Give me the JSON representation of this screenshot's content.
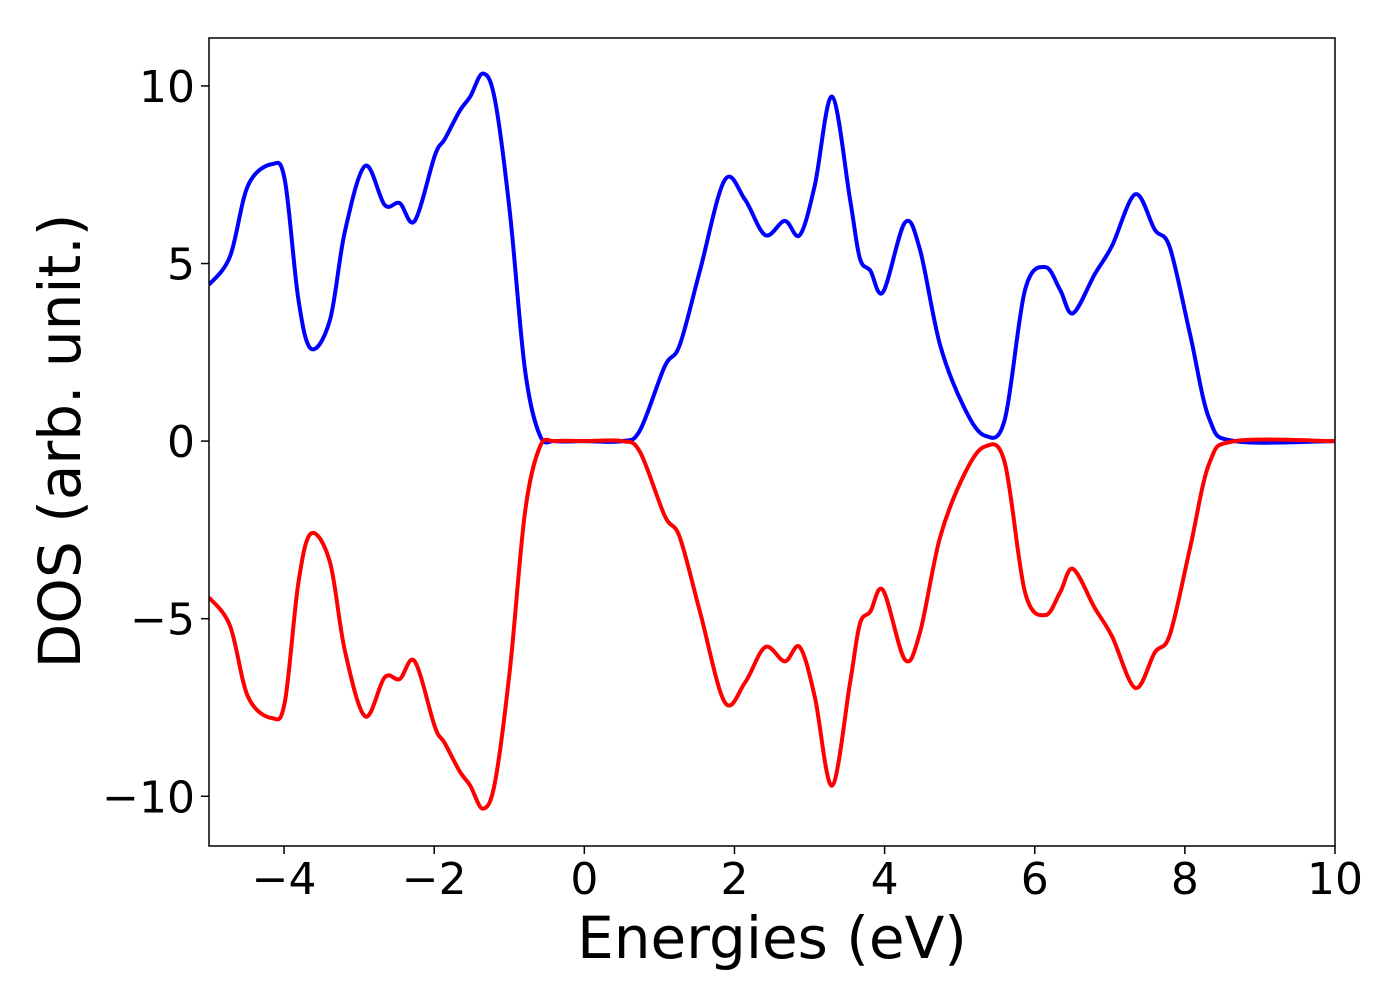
{
  "chart_data": {
    "type": "line",
    "xlabel": "Energies (eV)",
    "ylabel": "DOS (arb. unit.)",
    "x": [
      -5,
      -4.72,
      -4.48,
      -4.16,
      -3.99,
      -3.81,
      -3.64,
      -3.39,
      -3.19,
      -2.92,
      -2.66,
      -2.46,
      -2.26,
      -1.99,
      -1.86,
      -1.66,
      -1.52,
      -1.35,
      -1.19,
      -0.99,
      -0.79,
      -0.59,
      -0.39,
      0,
      0.5,
      0.74,
      1.07,
      1.27,
      1.54,
      1.87,
      2.14,
      2.41,
      2.67,
      2.87,
      3.07,
      3.3,
      3.54,
      3.67,
      3.81,
      3.98,
      4.27,
      4.47,
      4.74,
      5.07,
      5.34,
      5.6,
      5.87,
      6.14,
      6.34,
      6.51,
      6.8,
      7.03,
      7.34,
      7.6,
      7.8,
      8.07,
      8.33,
      8.67,
      10
    ],
    "series": [
      {
        "color": "#0000ff",
        "values": [
          4.4,
          5.2,
          7.2,
          7.8,
          7.35,
          4.0,
          2.6,
          3.4,
          5.9,
          7.75,
          6.65,
          6.7,
          6.2,
          8.05,
          8.5,
          9.3,
          9.7,
          10.35,
          9.6,
          6.4,
          2.0,
          0.15,
          0,
          0,
          0,
          0.3,
          2.1,
          2.7,
          4.8,
          7.35,
          6.8,
          5.8,
          6.2,
          5.8,
          7.2,
          9.7,
          6.8,
          5.15,
          4.8,
          4.2,
          6.15,
          5.4,
          2.7,
          0.9,
          0.15,
          0.6,
          4.25,
          4.9,
          4.25,
          3.6,
          4.7,
          5.5,
          6.95,
          5.95,
          5.45,
          3.0,
          0.6,
          0,
          0
        ]
      },
      {
        "color": "#ff0000",
        "values": [
          -4.4,
          -5.2,
          -7.2,
          -7.8,
          -7.35,
          -4.0,
          -2.6,
          -3.4,
          -5.9,
          -7.75,
          -6.65,
          -6.7,
          -6.2,
          -8.05,
          -8.5,
          -9.3,
          -9.7,
          -10.35,
          -9.6,
          -6.4,
          -2.0,
          -0.15,
          0,
          0,
          0,
          -0.3,
          -2.1,
          -2.7,
          -4.8,
          -7.35,
          -6.8,
          -5.8,
          -6.2,
          -5.8,
          -7.2,
          -9.7,
          -6.8,
          -5.15,
          -4.8,
          -4.2,
          -6.15,
          -5.4,
          -2.7,
          -0.9,
          -0.15,
          -0.6,
          -4.25,
          -4.9,
          -4.25,
          -3.6,
          -4.7,
          -5.5,
          -6.95,
          -5.95,
          -5.45,
          -3.0,
          -0.6,
          0,
          0
        ]
      }
    ],
    "xlim": [
      -5,
      10
    ],
    "ylim": [
      -11.4,
      11.35
    ],
    "xticks": [
      {
        "value": -4,
        "label": "−4"
      },
      {
        "value": -2,
        "label": "−2"
      },
      0,
      2,
      4,
      6,
      8,
      10
    ],
    "yticks": [
      {
        "value": -10,
        "label": "−10"
      },
      {
        "value": -5,
        "label": "−5"
      },
      0,
      5,
      10
    ]
  }
}
